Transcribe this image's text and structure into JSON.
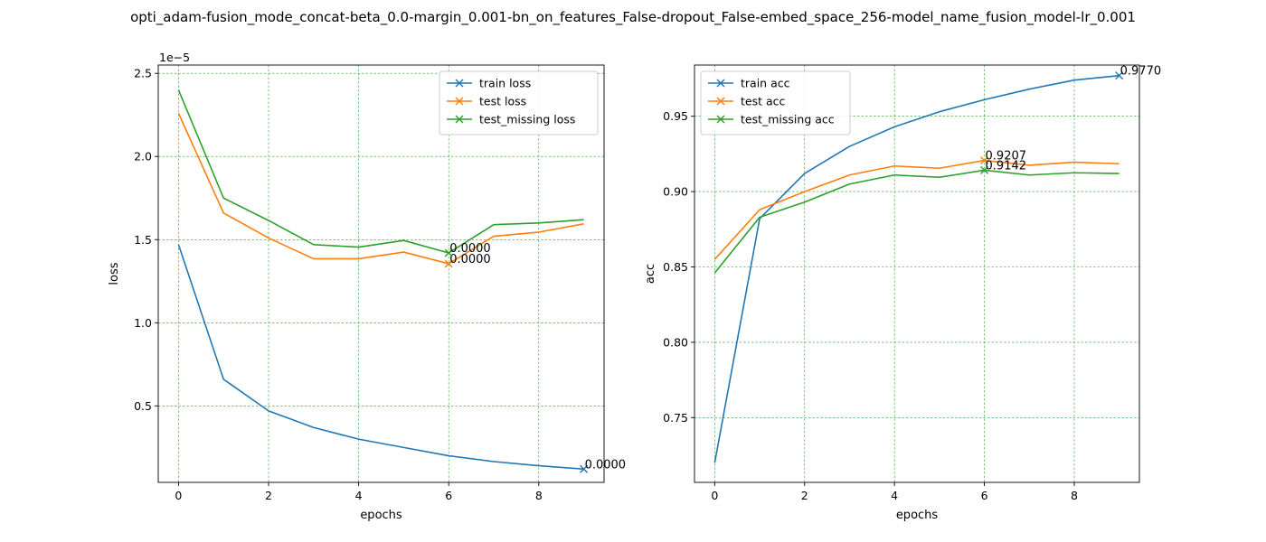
{
  "title": "opti_adam-fusion_mode_concat-beta_0.0-margin_0.001-bn_on_features_False-dropout_False-embed_space_256-model_name_fusion_model-lr_0.001",
  "colors": {
    "train": "#1f77b4",
    "test": "#ff7f0e",
    "test_missing": "#2ca02c",
    "grid": "#2ca02c",
    "axes": "#000000"
  },
  "chart_data": [
    {
      "type": "line",
      "xlabel": "epochs",
      "ylabel": "loss",
      "offset_text": "1e−5",
      "xlim": [
        -0.45,
        9.45
      ],
      "ylim": [
        0.04,
        2.55
      ],
      "xticks": [
        0,
        2,
        4,
        6,
        8
      ],
      "xtick_labels": [
        "0",
        "2",
        "4",
        "6",
        "8"
      ],
      "yticks": [
        0.5,
        1.0,
        1.5,
        2.0,
        2.5
      ],
      "ytick_labels": [
        "0.5",
        "1.0",
        "1.5",
        "2.0",
        "2.5"
      ],
      "grid": true,
      "legend_position": "upper right",
      "x": [
        0,
        1,
        2,
        3,
        4,
        5,
        6,
        7,
        8,
        9
      ],
      "series": [
        {
          "name": "train loss",
          "color_key": "train",
          "values": [
            1.47,
            0.66,
            0.47,
            0.37,
            0.3,
            0.25,
            0.2,
            0.165,
            0.14,
            0.12
          ],
          "marker": {
            "x": 9,
            "y": 0.12,
            "label": "0.0000"
          }
        },
        {
          "name": "test loss",
          "color_key": "test",
          "values": [
            2.26,
            1.66,
            1.51,
            1.385,
            1.385,
            1.425,
            1.355,
            1.52,
            1.545,
            1.595
          ],
          "marker": {
            "x": 6,
            "y": 1.355,
            "label": "0.0000"
          }
        },
        {
          "name": "test_missing loss",
          "color_key": "test_missing",
          "values": [
            2.4,
            1.75,
            1.615,
            1.47,
            1.455,
            1.495,
            1.42,
            1.59,
            1.6,
            1.62
          ],
          "marker": {
            "x": 6,
            "y": 1.42,
            "label": "0.0000"
          }
        }
      ]
    },
    {
      "type": "line",
      "xlabel": "epochs",
      "ylabel": "acc",
      "xlim": [
        -0.45,
        9.45
      ],
      "ylim": [
        0.707,
        0.984
      ],
      "xticks": [
        0,
        2,
        4,
        6,
        8
      ],
      "xtick_labels": [
        "0",
        "2",
        "4",
        "6",
        "8"
      ],
      "yticks": [
        0.75,
        0.8,
        0.85,
        0.9,
        0.95
      ],
      "ytick_labels": [
        "0.75",
        "0.80",
        "0.85",
        "0.90",
        "0.95"
      ],
      "grid": true,
      "legend_position": "upper left",
      "x": [
        0,
        1,
        2,
        3,
        4,
        5,
        6,
        7,
        8,
        9
      ],
      "series": [
        {
          "name": "train acc",
          "color_key": "train",
          "values": [
            0.72,
            0.882,
            0.912,
            0.93,
            0.943,
            0.953,
            0.961,
            0.968,
            0.974,
            0.977
          ],
          "marker": {
            "x": 9,
            "y": 0.977,
            "label": "0.9770"
          }
        },
        {
          "name": "test acc",
          "color_key": "test",
          "values": [
            0.855,
            0.888,
            0.9,
            0.911,
            0.917,
            0.9155,
            0.9207,
            0.9175,
            0.9195,
            0.9185
          ],
          "marker": {
            "x": 6,
            "y": 0.9207,
            "label": "0.9207"
          }
        },
        {
          "name": "test_missing acc",
          "color_key": "test_missing",
          "values": [
            0.846,
            0.883,
            0.893,
            0.905,
            0.911,
            0.9095,
            0.9142,
            0.911,
            0.9125,
            0.912
          ],
          "marker": {
            "x": 6,
            "y": 0.9142,
            "label": "0.9142"
          }
        }
      ]
    }
  ]
}
